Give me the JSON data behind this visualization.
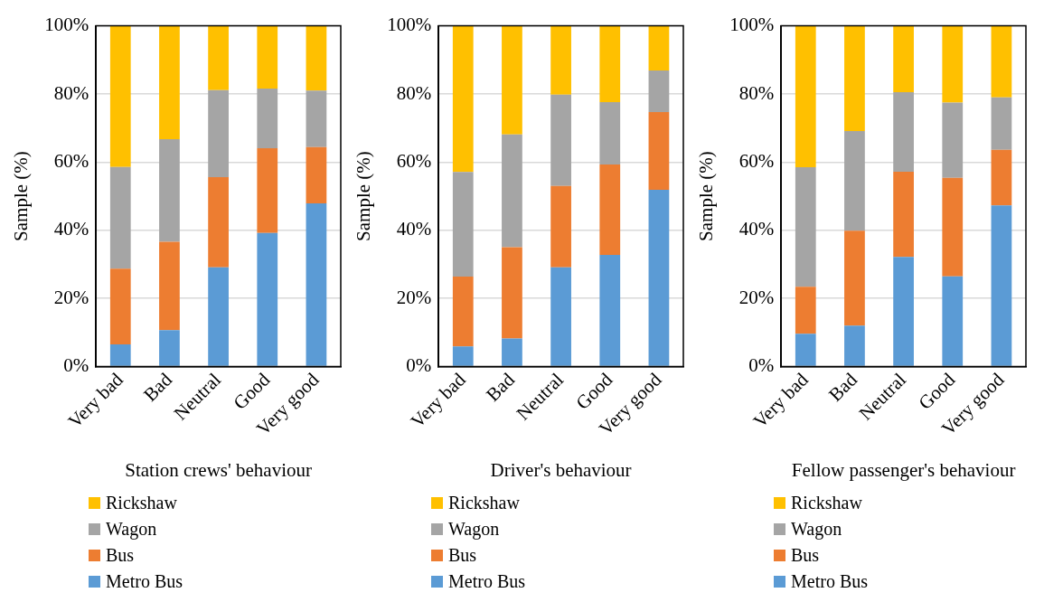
{
  "chart_data": [
    {
      "type": "bar",
      "stacked": true,
      "xlabel": "Station crews' behaviour",
      "ylabel": "Sample (%)",
      "categories": [
        "Very bad",
        "Bad",
        "Neutral",
        "Good",
        "Very good"
      ],
      "ylim": [
        0,
        100
      ],
      "yticks": [
        {
          "value": 0,
          "label": "0%"
        },
        {
          "value": 20,
          "label": "20%"
        },
        {
          "value": 40,
          "label": "40%"
        },
        {
          "value": 60,
          "label": "60%"
        },
        {
          "value": 80,
          "label": "80%"
        },
        {
          "value": 100,
          "label": "100%"
        }
      ],
      "grid": "y",
      "legend": "bottom",
      "series": [
        {
          "name": "Metro Bus",
          "color": "#5b9bd5",
          "values": [
            6.5,
            10.7,
            29.1,
            39.2,
            47.9
          ]
        },
        {
          "name": "Bus",
          "color": "#ed7d31",
          "values": [
            22.2,
            25.9,
            26.5,
            24.9,
            16.5
          ]
        },
        {
          "name": "Wagon",
          "color": "#a5a5a5",
          "values": [
            29.9,
            30.1,
            25.5,
            17.5,
            16.6
          ]
        },
        {
          "name": "Rickshaw",
          "color": "#ffc000",
          "values": [
            41.4,
            33.3,
            18.9,
            18.4,
            19.0
          ]
        }
      ]
    },
    {
      "type": "bar",
      "stacked": true,
      "xlabel": "Driver's behaviour",
      "ylabel": "Sample (%)",
      "categories": [
        "Very bad",
        "Bad",
        "Neutral",
        "Good",
        "Very good"
      ],
      "ylim": [
        0,
        100
      ],
      "yticks": [
        {
          "value": 0,
          "label": "0%"
        },
        {
          "value": 20,
          "label": "20%"
        },
        {
          "value": 40,
          "label": "40%"
        },
        {
          "value": 60,
          "label": "60%"
        },
        {
          "value": 80,
          "label": "80%"
        },
        {
          "value": 100,
          "label": "100%"
        }
      ],
      "grid": "y",
      "legend": "bottom",
      "series": [
        {
          "name": "Metro Bus",
          "color": "#5b9bd5",
          "values": [
            5.9,
            8.2,
            29.1,
            32.8,
            51.9
          ]
        },
        {
          "name": "Bus",
          "color": "#ed7d31",
          "values": [
            20.5,
            26.8,
            23.9,
            26.5,
            22.8
          ]
        },
        {
          "name": "Wagon",
          "color": "#a5a5a5",
          "values": [
            30.7,
            33.1,
            26.8,
            18.3,
            12.2
          ]
        },
        {
          "name": "Rickshaw",
          "color": "#ffc000",
          "values": [
            42.9,
            31.9,
            20.2,
            22.4,
            13.1
          ]
        }
      ]
    },
    {
      "type": "bar",
      "stacked": true,
      "xlabel": "Fellow passenger's behaviour",
      "ylabel": "Sample (%)",
      "categories": [
        "Very bad",
        "Bad",
        "Neutral",
        "Good",
        "Very good"
      ],
      "ylim": [
        0,
        100
      ],
      "yticks": [
        {
          "value": 0,
          "label": "0%"
        },
        {
          "value": 20,
          "label": "20%"
        },
        {
          "value": 40,
          "label": "40%"
        },
        {
          "value": 60,
          "label": "60%"
        },
        {
          "value": 80,
          "label": "80%"
        },
        {
          "value": 100,
          "label": "100%"
        }
      ],
      "grid": "y",
      "legend": "bottom",
      "series": [
        {
          "name": "Metro Bus",
          "color": "#5b9bd5",
          "values": [
            9.6,
            12.0,
            32.2,
            26.5,
            47.3
          ]
        },
        {
          "name": "Bus",
          "color": "#ed7d31",
          "values": [
            13.8,
            27.9,
            25.0,
            28.9,
            16.3
          ]
        },
        {
          "name": "Wagon",
          "color": "#a5a5a5",
          "values": [
            35.1,
            29.2,
            23.3,
            22.1,
            15.4
          ]
        },
        {
          "name": "Rickshaw",
          "color": "#ffc000",
          "values": [
            41.5,
            30.9,
            19.5,
            22.5,
            21.0
          ]
        }
      ]
    }
  ]
}
